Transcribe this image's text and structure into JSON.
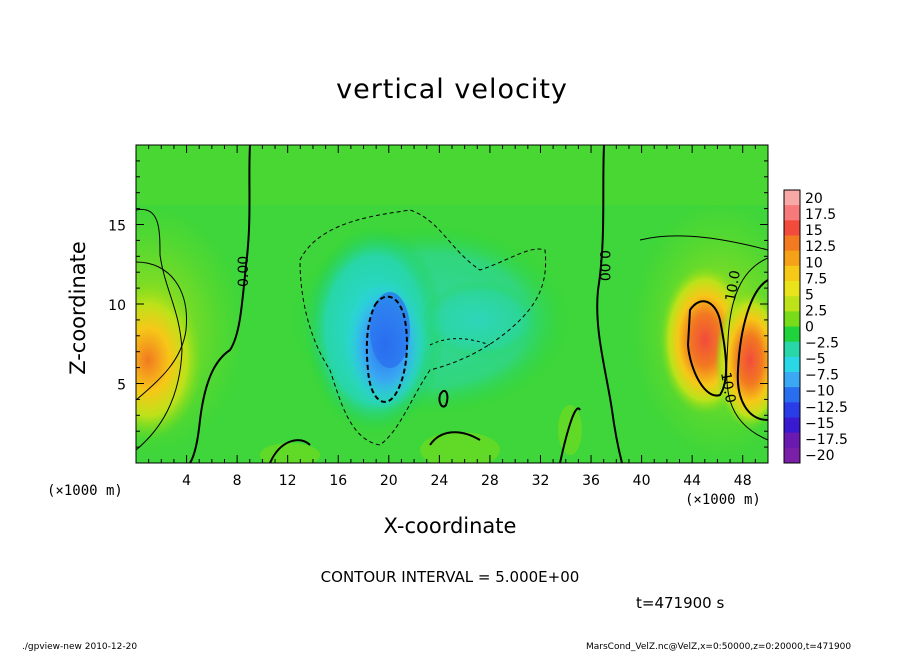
{
  "chart_data": {
    "type": "heatmap",
    "title": "vertical velocity",
    "xlabel": "X-coordinate",
    "ylabel": "Z-coordinate",
    "x_unit_label": "(×1000 m)",
    "x_ticks": [
      4,
      8,
      12,
      16,
      20,
      24,
      28,
      32,
      36,
      40,
      44,
      48
    ],
    "y_ticks": [
      5,
      10,
      15
    ],
    "xlim": [
      0,
      50
    ],
    "ylim": [
      0,
      20
    ],
    "colorbar": {
      "levels": [
        "20",
        "17.5",
        "15",
        "12.5",
        "10",
        "7.5",
        "5",
        "2.5",
        "0",
        "−2.5",
        "−5",
        "−7.5",
        "−10",
        "−12.5",
        "−15",
        "−17.5",
        "−20"
      ],
      "colors": [
        "#f9a8a8",
        "#f77a7a",
        "#f24b3c",
        "#f27a20",
        "#f5a21a",
        "#f6c818",
        "#e8e31a",
        "#bde21a",
        "#79dc1a",
        "#20d23c",
        "#28d6a8",
        "#2ad7e6",
        "#3aa8f2",
        "#2a6ef0",
        "#2a3ce8",
        "#3a1ad0",
        "#6a1ab0",
        "#7a20a8"
      ]
    },
    "contour_labels": [
      "0.00",
      "0.00",
      "10.0",
      "10.0"
    ],
    "contour_interval": "CONTOUR INTERVAL = 5.000E+00",
    "time": "t=471900 s"
  },
  "footer": {
    "left": "./gpview-new   2010-12-20",
    "right": "MarsCond_VelZ.nc@VelZ,x=0:50000,z=0:20000,t=471900"
  },
  "colors": {
    "background_field": "#3ed63a",
    "cyan": "#2ad7e6",
    "blue": "#3aa8f2",
    "deep_blue": "#2a6ef0",
    "yellow": "#e8e31a",
    "orange": "#f27a20",
    "red": "#f24b3c"
  }
}
